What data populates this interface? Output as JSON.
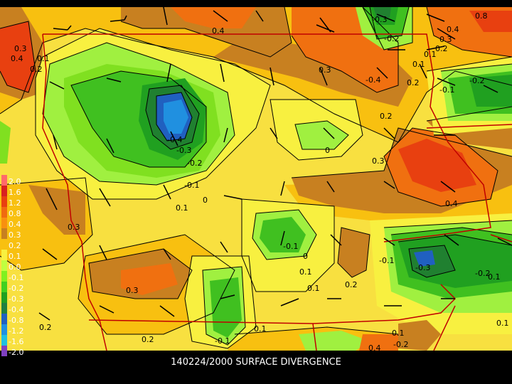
{
  "title": "140224/2000 SURFACE DIVERGENCE",
  "legend": {
    "labels": [
      "2.0",
      "1.6",
      "1.2",
      "0.8",
      "0.4",
      "0.3",
      "0.2",
      "0.1",
      "0.0",
      "-0.1",
      "-0.2",
      "-0.3",
      "-0.4",
      "-0.8",
      "-1.2",
      "-1.6",
      "-2.0"
    ],
    "colors": [
      "#ff6a6a",
      "#d82020",
      "#e84010",
      "#f06a10",
      "#f89010",
      "#c88020",
      "#f8c010",
      "#f8f040",
      "#c0ff40",
      "#80f020",
      "#40d020",
      "#20a020",
      "#208040",
      "#2060c0",
      "#2090e0",
      "#20c0e0",
      "#8040c0"
    ]
  },
  "contour_labels": [
    {
      "text": "0.4"
    },
    {
      "text": "0.3"
    },
    {
      "text": "0.4"
    },
    {
      "text": "0.2"
    },
    {
      "text": "0.1"
    },
    {
      "text": "-0.3"
    },
    {
      "text": "-0.2"
    },
    {
      "text": "0.8"
    },
    {
      "text": "0.4"
    },
    {
      "text": "0.3"
    },
    {
      "text": "0.2"
    },
    {
      "text": "0.1"
    },
    {
      "text": "0.3"
    },
    {
      "text": "-0.4"
    },
    {
      "text": "0.1"
    },
    {
      "text": "0.2"
    },
    {
      "text": "-0.1"
    },
    {
      "text": "-0.2"
    },
    {
      "text": "0.2"
    },
    {
      "text": "-0.4"
    },
    {
      "text": "-0.3"
    },
    {
      "text": "-0.2"
    },
    {
      "text": "-0.1"
    },
    {
      "text": "0"
    },
    {
      "text": "0"
    },
    {
      "text": "0.3"
    },
    {
      "text": "0.1"
    },
    {
      "text": "0.4"
    },
    {
      "text": "0.3"
    },
    {
      "text": "-0.1"
    },
    {
      "text": "0"
    },
    {
      "text": "-0.1"
    },
    {
      "text": "-0.3"
    },
    {
      "text": "-0.2"
    },
    {
      "text": "0.1"
    },
    {
      "text": "0.1"
    },
    {
      "text": "0.1"
    },
    {
      "text": "0.2"
    },
    {
      "text": "0.3"
    },
    {
      "text": "0.2"
    },
    {
      "text": "0.2"
    },
    {
      "text": "-0.1"
    },
    {
      "text": "0.1"
    },
    {
      "text": "0.1"
    },
    {
      "text": "-0.2"
    },
    {
      "text": "0.4"
    },
    {
      "text": "0.1"
    }
  ],
  "map_colors": {
    "yellow": "#f8e040",
    "light_yellow": "#f8f040",
    "gold": "#f8c010",
    "tan": "#c88020",
    "orange": "#f07010",
    "red_orange": "#e84010",
    "lime": "#a0f040",
    "light_green": "#80e020",
    "green": "#40c020",
    "dark_green": "#20a020",
    "deeper_green": "#208030",
    "blue": "#2060c0",
    "light_blue": "#2090e0",
    "border_red": "#c00000"
  }
}
